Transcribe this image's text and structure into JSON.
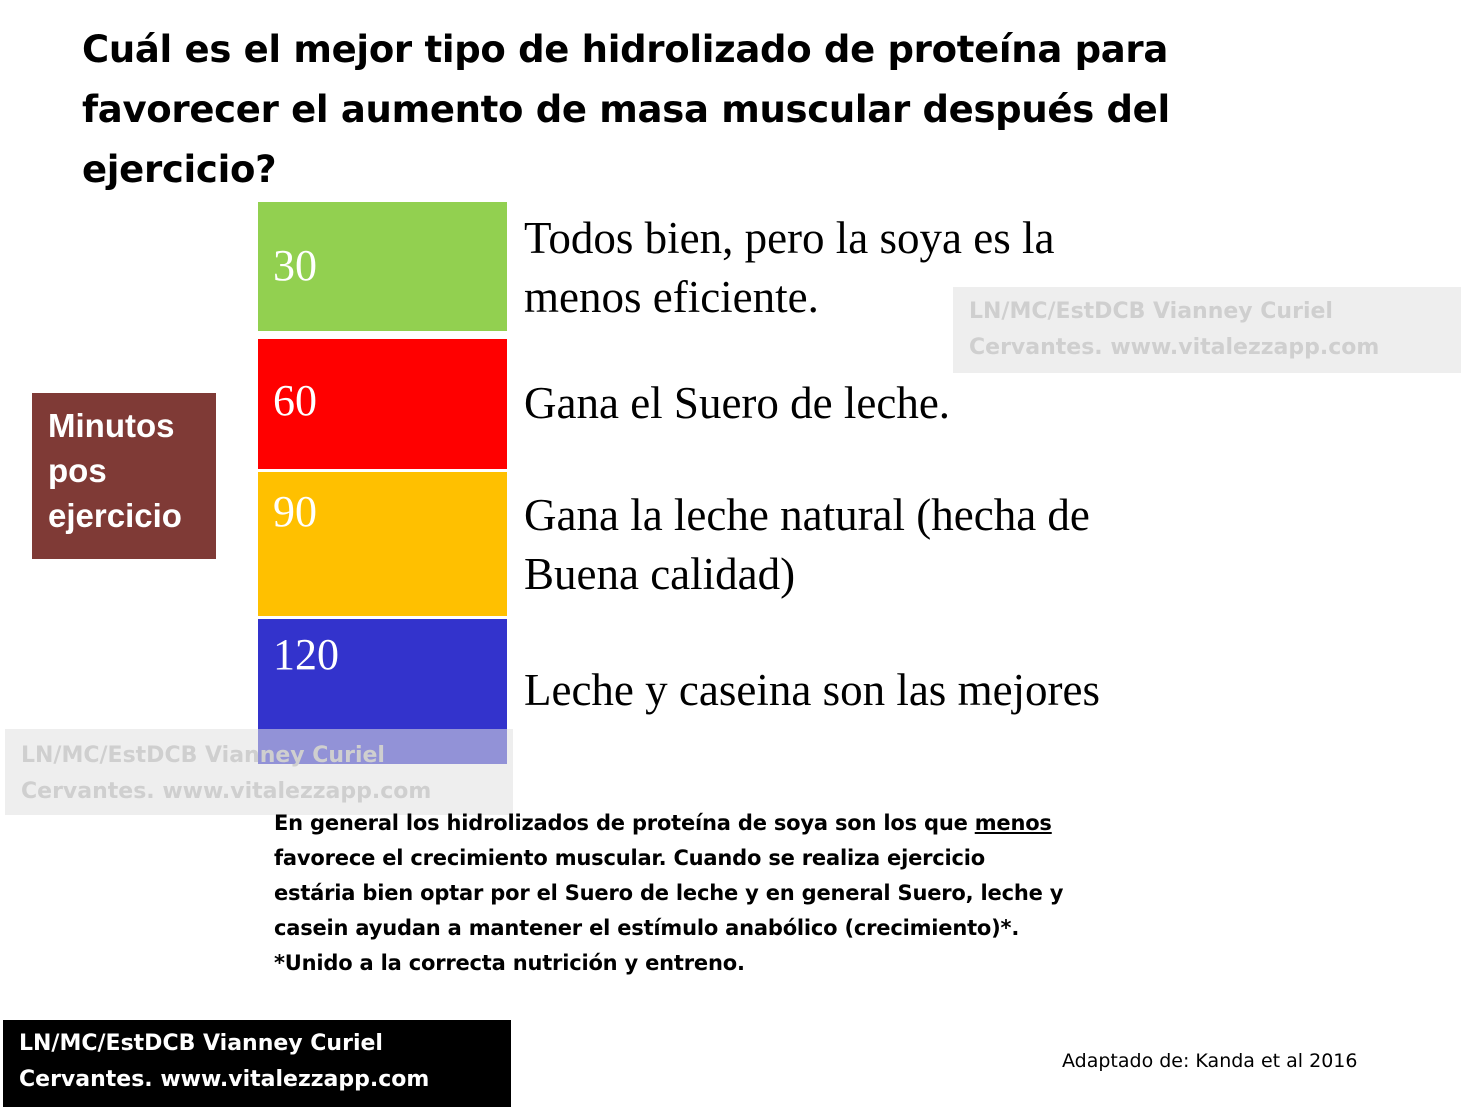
{
  "title": {
    "line1": "Cuál es el mejor tipo de hidrolizado de proteína para",
    "line2": "favorecer el aumento de masa muscular después del",
    "line3": "ejercicio?"
  },
  "axis_label": {
    "line1": "Minutos",
    "line2": "pos",
    "line3": "ejercicio"
  },
  "blocks": [
    {
      "minutes": "30",
      "color": "#92d050",
      "result_lines": [
        "Todos bien, pero la soya es la",
        "menos eficiente."
      ]
    },
    {
      "minutes": "60",
      "color": "#ff0000",
      "result_lines": [
        "Gana el Suero de leche."
      ]
    },
    {
      "minutes": "90",
      "color": "#ffc000",
      "result_lines": [
        "Gana la leche natural (hecha de",
        "Buena calidad)"
      ]
    },
    {
      "minutes": "120",
      "color": "#3333cc",
      "result_lines": [
        "Leche y caseina son las mejores"
      ]
    }
  ],
  "watermark": {
    "line1": "LN/MC/EstDCB Vianney Curiel",
    "line2": "Cervantes. www.vitalezzapp.com"
  },
  "summary": {
    "line1_a": "En general los hidrolizados de proteína de soya son los que ",
    "line1_u": "menos",
    "line2": "favorece el crecimiento muscular. Cuando se realiza ejercicio",
    "line3": "estária bien optar por el Suero de leche y en general Suero, leche y",
    "line4": "casein ayudan a mantener el estímulo anabólico (crecimiento)*.",
    "line5": "*Unido a la correcta nutrición y entreno."
  },
  "credit": {
    "line1": "LN/MC/EstDCB Vianney Curiel",
    "line2": "Cervantes. www.vitalezzapp.com"
  },
  "source": "Adaptado de: Kanda et al 2016"
}
